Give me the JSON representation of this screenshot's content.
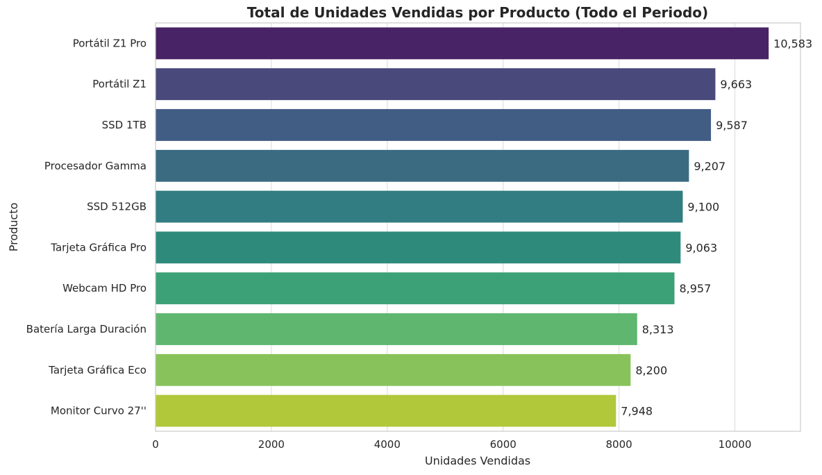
{
  "chart_data": {
    "type": "bar",
    "orientation": "horizontal",
    "title": "Total de Unidades Vendidas por Producto (Todo el Periodo)",
    "xlabel": "Unidades Vendidas",
    "ylabel": "Producto",
    "xlim": [
      0,
      11132
    ],
    "xticks": [
      0,
      2000,
      4000,
      6000,
      8000,
      10000
    ],
    "grid": "vertical",
    "categories": [
      "Portátil Z1 Pro",
      "Portátil Z1",
      "SSD 1TB",
      "Procesador Gamma",
      "SSD 512GB",
      "Tarjeta Gráfica Pro",
      "Webcam HD Pro",
      "Batería Larga Duración",
      "Tarjeta Gráfica Eco",
      "Monitor Curvo 27''"
    ],
    "values": [
      10583,
      9663,
      9587,
      9207,
      9100,
      9063,
      8957,
      8313,
      8200,
      7948
    ],
    "data_labels": [
      "10,583",
      "9,663",
      "9,587",
      "9,207",
      "9,100",
      "9,063",
      "8,957",
      "8,313",
      "8,200",
      "7,948"
    ],
    "colors": [
      "#482466",
      "#49497c",
      "#425d84",
      "#3a6b81",
      "#317d81",
      "#2e8b7c",
      "#3ca177",
      "#5fb76f",
      "#87c35a",
      "#b1c83a"
    ]
  }
}
